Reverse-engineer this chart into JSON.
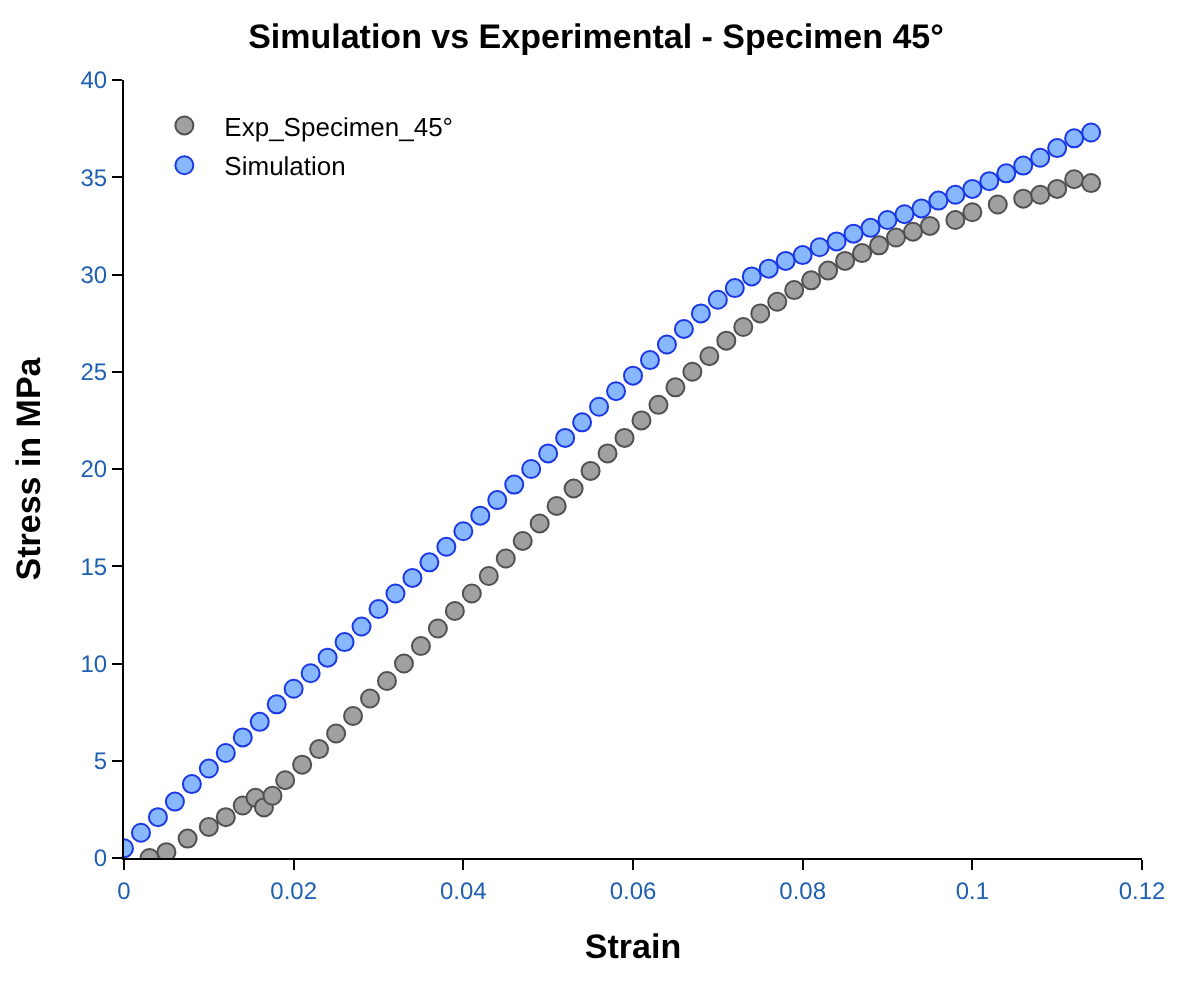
{
  "chart_data": {
    "type": "scatter",
    "title": "Simulation vs Experimental - Specimen 45°",
    "xlabel": "Strain",
    "ylabel": "Stress in MPa",
    "xlim": [
      0,
      0.12
    ],
    "xticks": [
      0,
      0.02,
      0.04,
      0.06,
      0.08,
      0.1,
      0.12
    ],
    "ylim": [
      0,
      40
    ],
    "yticks": [
      0,
      5,
      10,
      15,
      20,
      25,
      30,
      35,
      40
    ],
    "legend": "top left",
    "marker": "circle",
    "series": [
      {
        "name": "Exp_Specimen_45°",
        "color": "#a0a0a0",
        "x": [
          0.003,
          0.005,
          0.0075,
          0.01,
          0.012,
          0.014,
          0.0155,
          0.0165,
          0.0175,
          0.019,
          0.021,
          0.023,
          0.025,
          0.027,
          0.029,
          0.031,
          0.033,
          0.035,
          0.037,
          0.039,
          0.041,
          0.043,
          0.045,
          0.047,
          0.049,
          0.051,
          0.053,
          0.055,
          0.057,
          0.059,
          0.061,
          0.063,
          0.065,
          0.067,
          0.069,
          0.071,
          0.073,
          0.075,
          0.077,
          0.079,
          0.081,
          0.083,
          0.085,
          0.087,
          0.089,
          0.091,
          0.093,
          0.095,
          0.098,
          0.1,
          0.103,
          0.106,
          0.108,
          0.11,
          0.112,
          0.114
        ],
        "values": [
          0.0,
          0.3,
          1.0,
          1.6,
          2.1,
          2.7,
          3.1,
          2.6,
          3.2,
          4.0,
          4.8,
          5.6,
          6.4,
          7.3,
          8.2,
          9.1,
          10.0,
          10.9,
          11.8,
          12.7,
          13.6,
          14.5,
          15.4,
          16.3,
          17.2,
          18.1,
          19.0,
          19.9,
          20.8,
          21.6,
          22.5,
          23.3,
          24.2,
          25.0,
          25.8,
          26.6,
          27.3,
          28.0,
          28.6,
          29.2,
          29.7,
          30.2,
          30.7,
          31.1,
          31.5,
          31.9,
          32.2,
          32.5,
          32.8,
          33.2,
          33.6,
          33.9,
          34.1,
          34.4,
          34.9,
          34.7
        ]
      },
      {
        "name": "Simulation",
        "color": "#87b8ff",
        "x": [
          0,
          0.002,
          0.004,
          0.006,
          0.008,
          0.01,
          0.012,
          0.014,
          0.016,
          0.018,
          0.02,
          0.022,
          0.024,
          0.026,
          0.028,
          0.03,
          0.032,
          0.034,
          0.036,
          0.038,
          0.04,
          0.042,
          0.044,
          0.046,
          0.048,
          0.05,
          0.052,
          0.054,
          0.056,
          0.058,
          0.06,
          0.062,
          0.064,
          0.066,
          0.068,
          0.07,
          0.072,
          0.074,
          0.076,
          0.078,
          0.08,
          0.082,
          0.084,
          0.086,
          0.088,
          0.09,
          0.092,
          0.094,
          0.096,
          0.098,
          0.1,
          0.102,
          0.104,
          0.106,
          0.108,
          0.11,
          0.112,
          0.114
        ],
        "values": [
          0.5,
          1.3,
          2.1,
          2.9,
          3.8,
          4.6,
          5.4,
          6.2,
          7.0,
          7.9,
          8.7,
          9.5,
          10.3,
          11.1,
          11.9,
          12.8,
          13.6,
          14.4,
          15.2,
          16.0,
          16.8,
          17.6,
          18.4,
          19.2,
          20.0,
          20.8,
          21.6,
          22.4,
          23.2,
          24.0,
          24.8,
          25.6,
          26.4,
          27.2,
          28.0,
          28.7,
          29.3,
          29.9,
          30.3,
          30.7,
          31.0,
          31.4,
          31.7,
          32.1,
          32.4,
          32.8,
          33.1,
          33.4,
          33.8,
          34.1,
          34.4,
          34.8,
          35.2,
          35.6,
          36.0,
          36.5,
          37.0,
          37.3
        ]
      }
    ]
  }
}
